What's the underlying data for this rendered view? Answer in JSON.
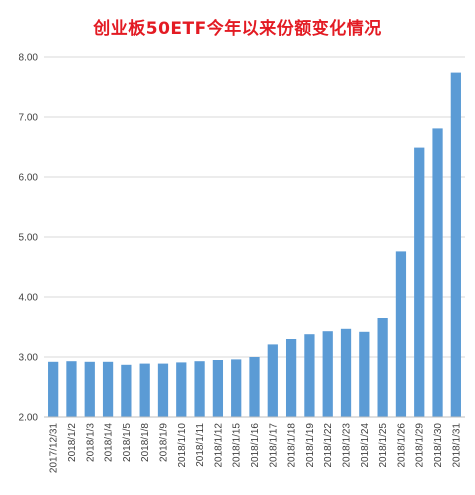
{
  "chart_data": {
    "type": "bar",
    "title": "创业板50ETF今年以来份额变化情况",
    "xlabel": "",
    "ylabel": "",
    "ylim": [
      2.0,
      8.0
    ],
    "yticks": [
      "2.00",
      "3.00",
      "4.00",
      "5.00",
      "6.00",
      "7.00",
      "8.00"
    ],
    "grid": true,
    "legend": "none",
    "bar_color": "#5b9bd5",
    "title_color": "#e31b23",
    "categories": [
      "2017/12/31",
      "2018/1/2",
      "2018/1/3",
      "2018/1/4",
      "2018/1/5",
      "2018/1/8",
      "2018/1/9",
      "2018/1/10",
      "2018/1/11",
      "2018/1/12",
      "2018/1/15",
      "2018/1/16",
      "2018/1/17",
      "2018/1/18",
      "2018/1/19",
      "2018/1/22",
      "2018/1/23",
      "2018/1/24",
      "2018/1/25",
      "2018/1/26",
      "2018/1/29",
      "2018/1/30",
      "2018/1/31"
    ],
    "values": [
      2.92,
      2.93,
      2.92,
      2.92,
      2.87,
      2.89,
      2.89,
      2.91,
      2.93,
      2.95,
      2.96,
      3.0,
      3.21,
      3.3,
      3.38,
      3.43,
      3.47,
      3.42,
      3.65,
      4.76,
      6.49,
      6.81,
      7.74
    ]
  }
}
